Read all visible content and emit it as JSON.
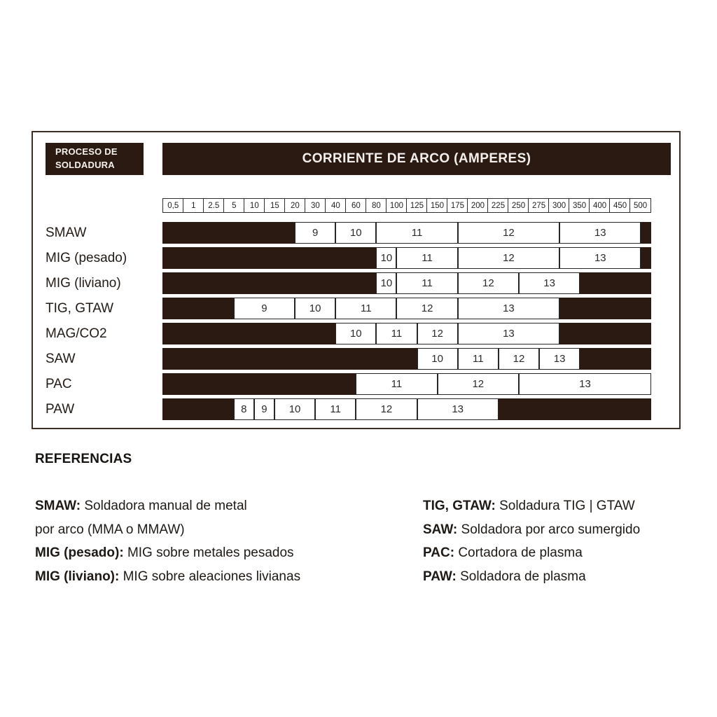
{
  "colors": {
    "dark": "#2b1a12",
    "box_border": "#262626",
    "text": "#221a15"
  },
  "chart_data": {
    "type": "bar",
    "subtype": "horizontal-range-segments (welding lens shade numbers vs arc current)",
    "title": "CORRIENTE DE ARCO (AMPERES)",
    "row_header": "PROCESO DE SOLDADURA",
    "total_cells": 24,
    "x_scale_amperes": [
      "0,5",
      "1",
      "2.5",
      "5",
      "10",
      "15",
      "20",
      "30",
      "40",
      "60",
      "80",
      "100",
      "125",
      "150",
      "175",
      "200",
      "225",
      "250",
      "275",
      "300",
      "350",
      "400",
      "450",
      "500"
    ],
    "rows": [
      {
        "process": "SMAW",
        "segments": [
          {
            "kind": "blank",
            "cells": [
              0,
              6.5
            ]
          },
          {
            "kind": "shade",
            "label": "9",
            "cells": [
              6.5,
              8.5
            ],
            "amps": "20-40"
          },
          {
            "kind": "shade",
            "label": "10",
            "cells": [
              8.5,
              10.5
            ],
            "amps": "40-80"
          },
          {
            "kind": "shade",
            "label": "11",
            "cells": [
              10.5,
              14.5
            ],
            "amps": "80-175"
          },
          {
            "kind": "shade",
            "label": "12",
            "cells": [
              14.5,
              19.5
            ],
            "amps": "175-300"
          },
          {
            "kind": "shade",
            "label": "13",
            "cells": [
              19.5,
              23.5
            ],
            "amps": "300-500"
          },
          {
            "kind": "blank",
            "cells": [
              23.5,
              24
            ]
          }
        ]
      },
      {
        "process": "MIG (pesado)",
        "segments": [
          {
            "kind": "blank",
            "cells": [
              0,
              10.5
            ]
          },
          {
            "kind": "shade",
            "label": "10",
            "cells": [
              10.5,
              11.5
            ],
            "amps": "80-100"
          },
          {
            "kind": "shade",
            "label": "11",
            "cells": [
              11.5,
              14.5
            ],
            "amps": "100-175"
          },
          {
            "kind": "shade",
            "label": "12",
            "cells": [
              14.5,
              19.5
            ],
            "amps": "175-300"
          },
          {
            "kind": "shade",
            "label": "13",
            "cells": [
              19.5,
              23.5
            ],
            "amps": "300-500"
          },
          {
            "kind": "blank",
            "cells": [
              23.5,
              24
            ]
          }
        ]
      },
      {
        "process": "MIG (liviano)",
        "segments": [
          {
            "kind": "blank",
            "cells": [
              0,
              10.5
            ]
          },
          {
            "kind": "shade",
            "label": "10",
            "cells": [
              10.5,
              11.5
            ],
            "amps": "80-100"
          },
          {
            "kind": "shade",
            "label": "11",
            "cells": [
              11.5,
              14.5
            ],
            "amps": "100-175"
          },
          {
            "kind": "shade",
            "label": "12",
            "cells": [
              14.5,
              17.5
            ],
            "amps": "175-250"
          },
          {
            "kind": "shade",
            "label": "13",
            "cells": [
              17.5,
              20.5
            ],
            "amps": "250-350"
          },
          {
            "kind": "blank",
            "cells": [
              20.5,
              24
            ]
          }
        ]
      },
      {
        "process": "TIG, GTAW",
        "segments": [
          {
            "kind": "blank",
            "cells": [
              0,
              3.5
            ]
          },
          {
            "kind": "shade",
            "label": "9",
            "cells": [
              3.5,
              6.5
            ],
            "amps": "5-20"
          },
          {
            "kind": "shade",
            "label": "10",
            "cells": [
              6.5,
              8.5
            ],
            "amps": "20-40"
          },
          {
            "kind": "shade",
            "label": "11",
            "cells": [
              8.5,
              11.5
            ],
            "amps": "40-100"
          },
          {
            "kind": "shade",
            "label": "12",
            "cells": [
              11.5,
              14.5
            ],
            "amps": "100-175"
          },
          {
            "kind": "shade",
            "label": "13",
            "cells": [
              14.5,
              19.5
            ],
            "amps": "175-300"
          },
          {
            "kind": "blank",
            "cells": [
              19.5,
              24
            ]
          }
        ]
      },
      {
        "process": "MAG/CO2",
        "segments": [
          {
            "kind": "blank",
            "cells": [
              0,
              8.5
            ]
          },
          {
            "kind": "shade",
            "label": "10",
            "cells": [
              8.5,
              10.5
            ],
            "amps": "40-80"
          },
          {
            "kind": "shade",
            "label": "11",
            "cells": [
              10.5,
              12.5
            ],
            "amps": "80-125"
          },
          {
            "kind": "shade",
            "label": "12",
            "cells": [
              12.5,
              14.5
            ],
            "amps": "125-175"
          },
          {
            "kind": "shade",
            "label": "13",
            "cells": [
              14.5,
              19.5
            ],
            "amps": "175-300"
          },
          {
            "kind": "blank",
            "cells": [
              19.5,
              24
            ]
          }
        ]
      },
      {
        "process": "SAW",
        "segments": [
          {
            "kind": "blank",
            "cells": [
              0,
              12.5
            ]
          },
          {
            "kind": "shade",
            "label": "10",
            "cells": [
              12.5,
              14.5
            ],
            "amps": "125-175"
          },
          {
            "kind": "shade",
            "label": "11",
            "cells": [
              14.5,
              16.5
            ],
            "amps": "175-225"
          },
          {
            "kind": "shade",
            "label": "12",
            "cells": [
              16.5,
              18.5
            ],
            "amps": "225-275"
          },
          {
            "kind": "shade",
            "label": "13",
            "cells": [
              18.5,
              20.5
            ],
            "amps": "275-350"
          },
          {
            "kind": "blank",
            "cells": [
              20.5,
              24
            ]
          }
        ]
      },
      {
        "process": "PAC",
        "segments": [
          {
            "kind": "blank",
            "cells": [
              0,
              9.5
            ]
          },
          {
            "kind": "shade",
            "label": "11",
            "cells": [
              9.5,
              13.5
            ],
            "amps": "60-150"
          },
          {
            "kind": "shade",
            "label": "12",
            "cells": [
              13.5,
              17.5
            ],
            "amps": "150-250"
          },
          {
            "kind": "shade",
            "label": "13",
            "cells": [
              17.5,
              24
            ],
            "amps": "250-500"
          }
        ]
      },
      {
        "process": "PAW",
        "segments": [
          {
            "kind": "blank",
            "cells": [
              0,
              3.5
            ]
          },
          {
            "kind": "shade",
            "label": "8",
            "cells": [
              3.5,
              4.5
            ],
            "amps": "5-10"
          },
          {
            "kind": "shade",
            "label": "9",
            "cells": [
              4.5,
              5.5
            ],
            "amps": "10-15"
          },
          {
            "kind": "shade",
            "label": "10",
            "cells": [
              5.5,
              7.5
            ],
            "amps": "15-30"
          },
          {
            "kind": "shade",
            "label": "11",
            "cells": [
              7.5,
              9.5
            ],
            "amps": "30-60"
          },
          {
            "kind": "shade",
            "label": "12",
            "cells": [
              9.5,
              12.5
            ],
            "amps": "60-125"
          },
          {
            "kind": "shade",
            "label": "13",
            "cells": [
              12.5,
              16.5
            ],
            "amps": "125-225"
          },
          {
            "kind": "blank",
            "cells": [
              16.5,
              24
            ]
          }
        ]
      }
    ]
  },
  "references": {
    "heading": "REFERENCIAS",
    "left": [
      {
        "term": "SMAW:",
        "desc": " Soldadora manual de metal"
      },
      {
        "term": "",
        "desc": "por arco (MMA o MMAW)"
      },
      {
        "term": "MIG (pesado):",
        "desc": " MIG sobre metales pesados"
      },
      {
        "term": "MIG (liviano):",
        "desc": " MIG sobre aleaciones livianas"
      }
    ],
    "right": [
      {
        "term": "TIG, GTAW:",
        "desc": " Soldadura TIG | GTAW"
      },
      {
        "term": "SAW:",
        "desc": " Soldadora por arco sumergido"
      },
      {
        "term": "PAC:",
        "desc": " Cortadora de plasma"
      },
      {
        "term": "PAW:",
        "desc": " Soldadora de plasma"
      }
    ]
  }
}
